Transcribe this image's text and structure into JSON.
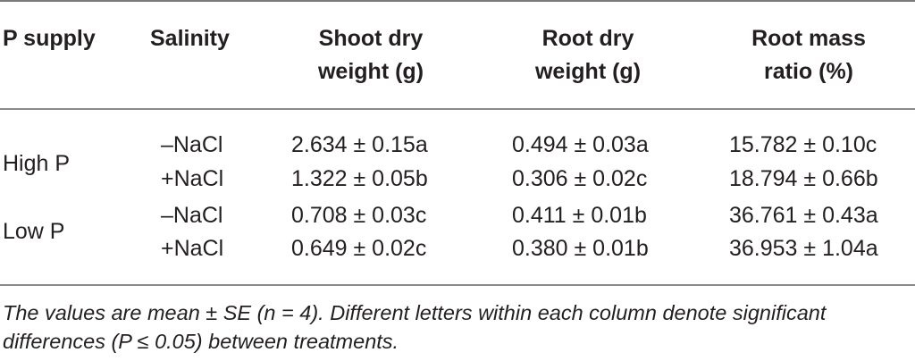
{
  "table": {
    "headers": {
      "p_supply": "P supply",
      "salinity": "Salinity",
      "shoot_line1": "Shoot dry",
      "shoot_line2": "weight (g)",
      "root_line1": "Root dry",
      "root_line2": "weight (g)",
      "rmr_line1": "Root mass",
      "rmr_line2": "ratio (%)"
    },
    "groups": [
      {
        "p_supply": "High P",
        "rows": [
          {
            "salinity": "–NaCl",
            "shoot": "2.634 ± 0.15a",
            "root": "0.494 ± 0.03a",
            "rmr": "15.782 ± 0.10c"
          },
          {
            "salinity": "+NaCl",
            "shoot": "1.322 ± 0.05b",
            "root": "0.306 ± 0.02c",
            "rmr": "18.794 ± 0.66b"
          }
        ]
      },
      {
        "p_supply": "Low P",
        "rows": [
          {
            "salinity": "–NaCl",
            "shoot": "0.708 ± 0.03c",
            "root": "0.411 ± 0.01b",
            "rmr": "36.761 ± 0.43a"
          },
          {
            "salinity": "+NaCl",
            "shoot": "0.649 ± 0.02c",
            "root": "0.380 ± 0.01b",
            "rmr": "36.953 ± 1.04a"
          }
        ]
      }
    ],
    "footnote_line1": "The values are mean ± SE (n = 4). Different letters within each column denote significant",
    "footnote_line2": "differences (P ≤ 0.05) between treatments."
  }
}
